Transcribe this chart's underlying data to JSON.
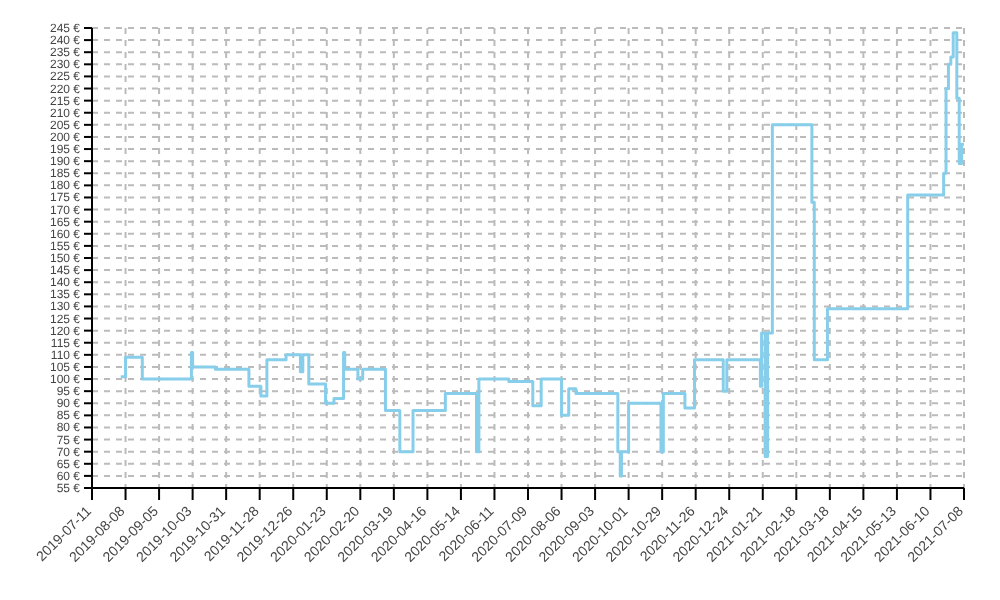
{
  "chart_data": {
    "type": "step",
    "color": "#87ceeb",
    "x": [
      "2019-08-04",
      "2019-08-08",
      "2019-08-22",
      "2019-10-02",
      "2019-10-03",
      "2019-10-22",
      "2019-11-19",
      "2019-11-29",
      "2019-12-04",
      "2019-12-20",
      "2020-01-01",
      "2020-01-03",
      "2020-01-08",
      "2020-01-22",
      "2020-01-29",
      "2020-02-06",
      "2020-02-07",
      "2020-02-18",
      "2020-02-22",
      "2020-03-12",
      "2020-03-24",
      "2020-04-04",
      "2020-05-01",
      "2020-05-27",
      "2020-05-29",
      "2020-06-23",
      "2020-07-13",
      "2020-07-20",
      "2020-08-06",
      "2020-08-12",
      "2020-08-18",
      "2020-09-22",
      "2020-09-24",
      "2020-09-25",
      "2020-10-01",
      "2020-10-28",
      "2020-10-30",
      "2020-11-17",
      "2020-11-25",
      "2020-12-19",
      "2020-12-22",
      "2021-01-19",
      "2021-01-20",
      "2021-01-23",
      "2021-01-25",
      "2021-01-29",
      "2021-03-03",
      "2021-03-05",
      "2021-03-16",
      "2021-05-22",
      "2021-06-21",
      "2021-06-23",
      "2021-06-25",
      "2021-06-27",
      "2021-06-29",
      "2021-07-02",
      "2021-07-04",
      "2021-07-06",
      "2021-07-08"
    ],
    "values": [
      101,
      109,
      100,
      111,
      105,
      104,
      97,
      93,
      108,
      110,
      103,
      110,
      98,
      90,
      92,
      111,
      104,
      100,
      104,
      87,
      70,
      87,
      94,
      70,
      100,
      99,
      89,
      100,
      85,
      96,
      94,
      70,
      60,
      70,
      90,
      70,
      94,
      88,
      108,
      95,
      108,
      97,
      119,
      68,
      119,
      205,
      173,
      108,
      129,
      176,
      185,
      220,
      230,
      233,
      243,
      216,
      189,
      197,
      197
    ],
    "xlim": [
      "2019-07-11",
      "2021-07-08"
    ],
    "xticks": [
      "2019-07-11",
      "2019-08-08",
      "2019-09-05",
      "2019-10-03",
      "2019-10-31",
      "2019-11-28",
      "2019-12-26",
      "2020-01-23",
      "2020-02-20",
      "2020-03-19",
      "2020-04-16",
      "2020-05-14",
      "2020-06-11",
      "2020-07-09",
      "2020-08-06",
      "2020-09-03",
      "2020-10-01",
      "2020-10-29",
      "2020-11-26",
      "2020-12-24",
      "2021-01-21",
      "2021-02-18",
      "2021-03-18",
      "2021-04-15",
      "2021-05-13",
      "2021-06-10",
      "2021-07-08"
    ],
    "ylim": [
      55,
      245
    ],
    "yticks": [
      {
        "value": 55,
        "label": "55 €"
      },
      {
        "value": 60,
        "label": "60 €"
      },
      {
        "value": 65,
        "label": "65 €"
      },
      {
        "value": 70,
        "label": "70 €"
      },
      {
        "value": 75,
        "label": "75 €"
      },
      {
        "value": 80,
        "label": "80 €"
      },
      {
        "value": 85,
        "label": "85 €"
      },
      {
        "value": 90,
        "label": "90 €"
      },
      {
        "value": 95,
        "label": "95 €"
      },
      {
        "value": 100,
        "label": "100 €"
      },
      {
        "value": 105,
        "label": "105 €"
      },
      {
        "value": 110,
        "label": "110 €"
      },
      {
        "value": 115,
        "label": "115 €"
      },
      {
        "value": 120,
        "label": "120 €"
      },
      {
        "value": 125,
        "label": "125 €"
      },
      {
        "value": 130,
        "label": "130 €"
      },
      {
        "value": 135,
        "label": "135 €"
      },
      {
        "value": 140,
        "label": "140 €"
      },
      {
        "value": 145,
        "label": "145 €"
      },
      {
        "value": 150,
        "label": "150 €"
      },
      {
        "value": 155,
        "label": "155 €"
      },
      {
        "value": 160,
        "label": "160 €"
      },
      {
        "value": 165,
        "label": "165 €"
      },
      {
        "value": 170,
        "label": "170 €"
      },
      {
        "value": 175,
        "label": "175 €"
      },
      {
        "value": 180,
        "label": "180 €"
      },
      {
        "value": 185,
        "label": "185 €"
      },
      {
        "value": 190,
        "label": "190 €"
      },
      {
        "value": 195,
        "label": "195 €"
      },
      {
        "value": 200,
        "label": "200 €"
      },
      {
        "value": 205,
        "label": "205 €"
      },
      {
        "value": 210,
        "label": "210 €"
      },
      {
        "value": 215,
        "label": "215 €"
      },
      {
        "value": 220,
        "label": "220 €"
      },
      {
        "value": 225,
        "label": "225 €"
      },
      {
        "value": 230,
        "label": "230 €"
      },
      {
        "value": 235,
        "label": "235 €"
      },
      {
        "value": 240,
        "label": "240 €"
      },
      {
        "value": 245,
        "label": "245 €"
      }
    ],
    "grid": true,
    "line_style": "solid",
    "marker": "none",
    "legend": false
  }
}
